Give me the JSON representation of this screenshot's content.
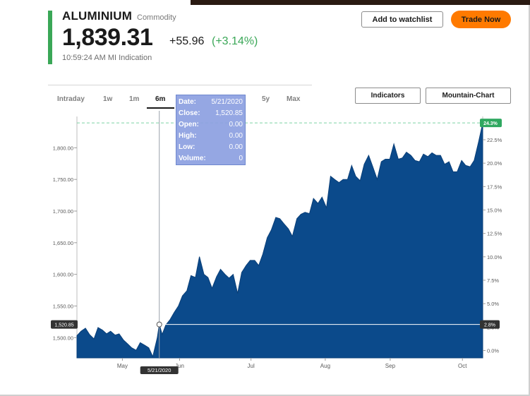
{
  "header": {
    "name": "ALUMINIUM",
    "type": "Commodity",
    "price": "1,839.31",
    "change": "+55.96",
    "change_pct": "(+3.14%)",
    "timestamp": "10:59:24 AM MI Indication",
    "watchlist_label": "Add to watchlist",
    "trade_label": "Trade Now"
  },
  "colors": {
    "accent": "#3aa757",
    "trade": "#ff7a00",
    "area": "#0b4a8b",
    "tooltip": "#8ca0e1"
  },
  "tabs": [
    {
      "label": "Intraday",
      "active": false
    },
    {
      "label": "1w",
      "active": false
    },
    {
      "label": "1m",
      "active": false
    },
    {
      "label": "6m",
      "active": true
    },
    {
      "label": "5y",
      "active": false
    },
    {
      "label": "Max",
      "active": false
    }
  ],
  "buttons": {
    "indicators": "Indicators",
    "chart_type": "Mountain-Chart"
  },
  "tooltip": {
    "rows": [
      {
        "label": "Date:",
        "value": "5/21/2020"
      },
      {
        "label": "Close:",
        "value": "1,520.85"
      },
      {
        "label": "Open:",
        "value": "0.00"
      },
      {
        "label": "High:",
        "value": "0.00"
      },
      {
        "label": "Low:",
        "value": "0.00"
      },
      {
        "label": "Volume:",
        "value": "0"
      }
    ]
  },
  "chart_data": {
    "type": "area",
    "ylim": [
      1468,
      1845
    ],
    "y_ticks": [
      1500,
      1550,
      1600,
      1650,
      1700,
      1750,
      1800
    ],
    "y_tick_labels": [
      "1,500.00",
      "1,550.00",
      "1,600.00",
      "1,650.00",
      "1,700.00",
      "1,750.00",
      "1,800.00"
    ],
    "y2_ticks": [
      0,
      2.5,
      5,
      7.5,
      10,
      12.5,
      15,
      17.5,
      20,
      22.5
    ],
    "y2_tick_labels": [
      "0.0%",
      "2.5%",
      "5.0%",
      "7.5%",
      "10.0%",
      "12.5%",
      "15.0%",
      "17.5%",
      "20.0%",
      "22.5%"
    ],
    "x_months": [
      {
        "label": "May",
        "pos": 0.112
      },
      {
        "label": "Jun",
        "pos": 0.253
      },
      {
        "label": "Jul",
        "pos": 0.429
      },
      {
        "label": "Aug",
        "pos": 0.612
      },
      {
        "label": "Sep",
        "pos": 0.772
      },
      {
        "label": "Oct",
        "pos": 0.95
      }
    ],
    "crosshair": {
      "date": "5/21/2020",
      "value": 1520.85,
      "value_label": "1,520.85",
      "pct_label": "2.8%",
      "pos": 0.203
    },
    "last": {
      "value": 1839.31,
      "pct_label": "24.3%"
    },
    "points": [
      [
        0.0,
        1503
      ],
      [
        0.01,
        1510
      ],
      [
        0.021,
        1515
      ],
      [
        0.031,
        1505
      ],
      [
        0.042,
        1498
      ],
      [
        0.052,
        1516
      ],
      [
        0.063,
        1512
      ],
      [
        0.073,
        1506
      ],
      [
        0.083,
        1510
      ],
      [
        0.094,
        1504
      ],
      [
        0.104,
        1506
      ],
      [
        0.115,
        1496
      ],
      [
        0.125,
        1490
      ],
      [
        0.135,
        1484
      ],
      [
        0.146,
        1480
      ],
      [
        0.156,
        1492
      ],
      [
        0.167,
        1488
      ],
      [
        0.177,
        1484
      ],
      [
        0.187,
        1470
      ],
      [
        0.198,
        1500
      ],
      [
        0.203,
        1521
      ],
      [
        0.21,
        1505
      ],
      [
        0.219,
        1520
      ],
      [
        0.229,
        1528
      ],
      [
        0.24,
        1540
      ],
      [
        0.25,
        1550
      ],
      [
        0.26,
        1566
      ],
      [
        0.271,
        1574
      ],
      [
        0.281,
        1598
      ],
      [
        0.292,
        1595
      ],
      [
        0.302,
        1628
      ],
      [
        0.313,
        1600
      ],
      [
        0.323,
        1595
      ],
      [
        0.333,
        1578
      ],
      [
        0.344,
        1596
      ],
      [
        0.354,
        1608
      ],
      [
        0.365,
        1600
      ],
      [
        0.375,
        1594
      ],
      [
        0.385,
        1600
      ],
      [
        0.396,
        1570
      ],
      [
        0.406,
        1603
      ],
      [
        0.417,
        1614
      ],
      [
        0.427,
        1622
      ],
      [
        0.438,
        1622
      ],
      [
        0.448,
        1614
      ],
      [
        0.458,
        1632
      ],
      [
        0.469,
        1658
      ],
      [
        0.479,
        1670
      ],
      [
        0.49,
        1690
      ],
      [
        0.5,
        1688
      ],
      [
        0.51,
        1680
      ],
      [
        0.521,
        1672
      ],
      [
        0.531,
        1660
      ],
      [
        0.542,
        1688
      ],
      [
        0.552,
        1695
      ],
      [
        0.562,
        1698
      ],
      [
        0.573,
        1696
      ],
      [
        0.583,
        1720
      ],
      [
        0.594,
        1712
      ],
      [
        0.604,
        1722
      ],
      [
        0.615,
        1705
      ],
      [
        0.625,
        1755
      ],
      [
        0.635,
        1750
      ],
      [
        0.646,
        1745
      ],
      [
        0.656,
        1750
      ],
      [
        0.667,
        1750
      ],
      [
        0.677,
        1772
      ],
      [
        0.687,
        1755
      ],
      [
        0.698,
        1748
      ],
      [
        0.708,
        1774
      ],
      [
        0.719,
        1788
      ],
      [
        0.729,
        1770
      ],
      [
        0.74,
        1750
      ],
      [
        0.75,
        1778
      ],
      [
        0.76,
        1782
      ],
      [
        0.771,
        1782
      ],
      [
        0.781,
        1806
      ],
      [
        0.792,
        1782
      ],
      [
        0.802,
        1784
      ],
      [
        0.812,
        1793
      ],
      [
        0.823,
        1788
      ],
      [
        0.833,
        1780
      ],
      [
        0.844,
        1778
      ],
      [
        0.854,
        1790
      ],
      [
        0.865,
        1786
      ],
      [
        0.875,
        1792
      ],
      [
        0.885,
        1788
      ],
      [
        0.896,
        1788
      ],
      [
        0.906,
        1774
      ],
      [
        0.917,
        1778
      ],
      [
        0.927,
        1762
      ],
      [
        0.937,
        1762
      ],
      [
        0.948,
        1780
      ],
      [
        0.958,
        1772
      ],
      [
        0.969,
        1770
      ],
      [
        0.979,
        1780
      ],
      [
        0.99,
        1810
      ],
      [
        1.0,
        1839
      ]
    ]
  }
}
